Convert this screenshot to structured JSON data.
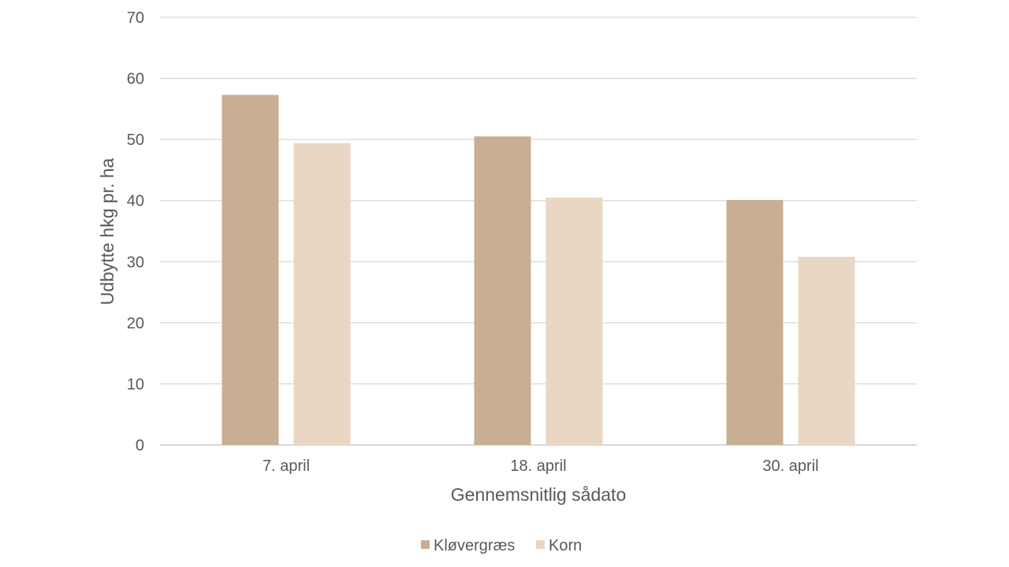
{
  "chart_data": {
    "type": "bar",
    "title": "",
    "xlabel": "Gennemsnitlig sådato",
    "ylabel": "Udbytte hkg pr. ha",
    "categories": [
      "7. april",
      "18. april",
      "30. april"
    ],
    "series": [
      {
        "name": "Kløvergræs",
        "values": [
          57.3,
          50.5,
          40.1
        ],
        "color": "#C8AE93"
      },
      {
        "name": "Korn",
        "values": [
          49.4,
          40.5,
          30.8
        ],
        "color": "#E9D7C3"
      }
    ],
    "ylim": [
      0,
      70
    ],
    "yticks": [
      0,
      10,
      20,
      30,
      40,
      50,
      60,
      70
    ],
    "grid": true,
    "legend_position": "bottom",
    "colors": {
      "grid": "#D9D9D9",
      "axis": "#BFBFBF",
      "text": "#595959"
    }
  }
}
